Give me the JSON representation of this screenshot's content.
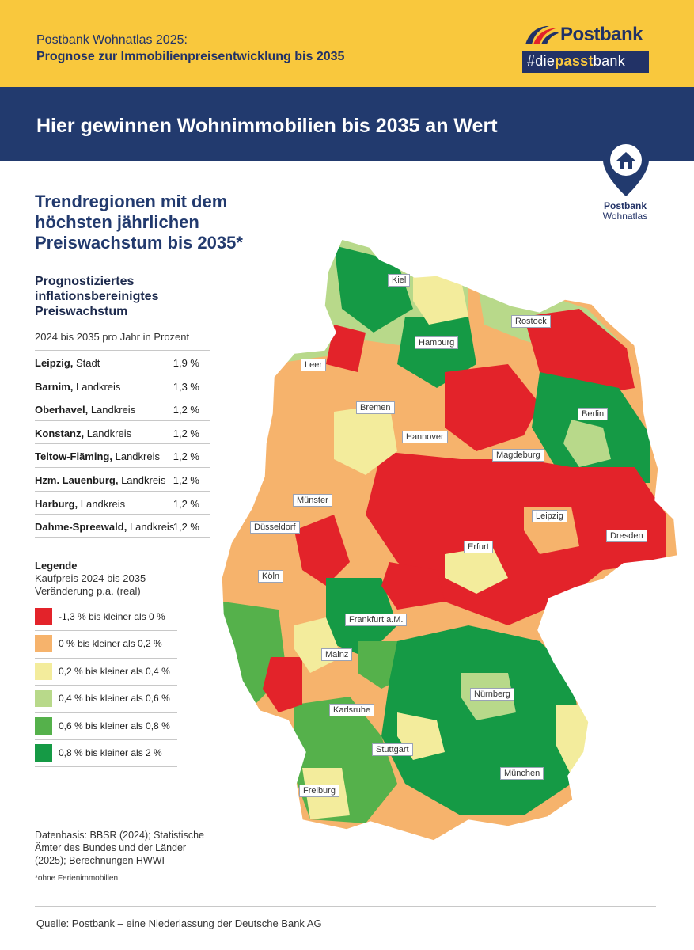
{
  "header": {
    "title_line1": "Postbank Wohnatlas 2025:",
    "title_line2": "Prognose zur Immobilienpreisentwicklung bis 2035"
  },
  "logo": {
    "name": "Postbank",
    "tag_prefix": "#die",
    "tag_bold": "passt",
    "tag_suffix": "bank"
  },
  "banner": {
    "headline": "Hier gewinnen Wohnimmobilien bis 2035 an Wert"
  },
  "pin": {
    "line1": "Postbank",
    "line2": "Wohnatlas"
  },
  "sidebar": {
    "heading": "Trendregionen mit dem höchsten jährlichen Preiswachstum bis 2035*",
    "subheading": "Prognostiziertes inflationsbereinigtes Preiswachstum",
    "unit": "2024 bis 2035 pro Jahr in Prozent",
    "ranking": [
      {
        "name": "Leipzig,",
        "type": "Stadt",
        "value": "1,9 %"
      },
      {
        "name": "Barnim,",
        "type": "Landkreis",
        "value": "1,3 %"
      },
      {
        "name": "Oberhavel,",
        "type": "Landkreis",
        "value": "1,2 %"
      },
      {
        "name": "Konstanz,",
        "type": "Landkreis",
        "value": "1,2 %"
      },
      {
        "name": "Teltow-Fläming,",
        "type": "Landkreis",
        "value": "1,2 %"
      },
      {
        "name": "Hzm. Lauenburg,",
        "type": "Landkreis",
        "value": "1,2 %"
      },
      {
        "name": "Harburg,",
        "type": "Landkreis",
        "value": "1,2 %"
      },
      {
        "name": "Dahme-Spreewald,",
        "type": "Landkreis",
        "value": "1,2 %"
      }
    ]
  },
  "legend": {
    "title": "Legende",
    "sub1": "Kaufpreis 2024 bis 2035",
    "sub2": "Veränderung p.a. (real)",
    "items": [
      {
        "label": "-1,3 % bis kleiner als 0 %",
        "color": "#e3232a"
      },
      {
        "label": "0 % bis kleiner als 0,2 %",
        "color": "#f6b36c"
      },
      {
        "label": "0,2 % bis kleiner als 0,4 %",
        "color": "#f3ec9c"
      },
      {
        "label": "0,4 % bis kleiner als 0,6 %",
        "color": "#b8d98a"
      },
      {
        "label": "0,6 % bis kleiner als 0,8 %",
        "color": "#55b14b"
      },
      {
        "label": "0,8 % bis kleiner als 2 %",
        "color": "#159a45"
      }
    ]
  },
  "source": "Datenbasis: BBSR (2024); Statistische Ämter des Bundes und der Länder (2025); Berechnungen HWWI",
  "footnote": "*ohne Ferienimmobilien",
  "credit": "Quelle: Postbank – eine Niederlassung der Deutsche Bank AG",
  "map": {
    "cities": [
      "Kiel",
      "Rostock",
      "Hamburg",
      "Leer",
      "Bremen",
      "Berlin",
      "Hannover",
      "Magdeburg",
      "Münster",
      "Leipzig",
      "Düsseldorf",
      "Erfurt",
      "Dresden",
      "Köln",
      "Frankfurt a.M.",
      "Mainz",
      "Nürnberg",
      "Karlsruhe",
      "Stuttgart",
      "München",
      "Freiburg"
    ]
  }
}
